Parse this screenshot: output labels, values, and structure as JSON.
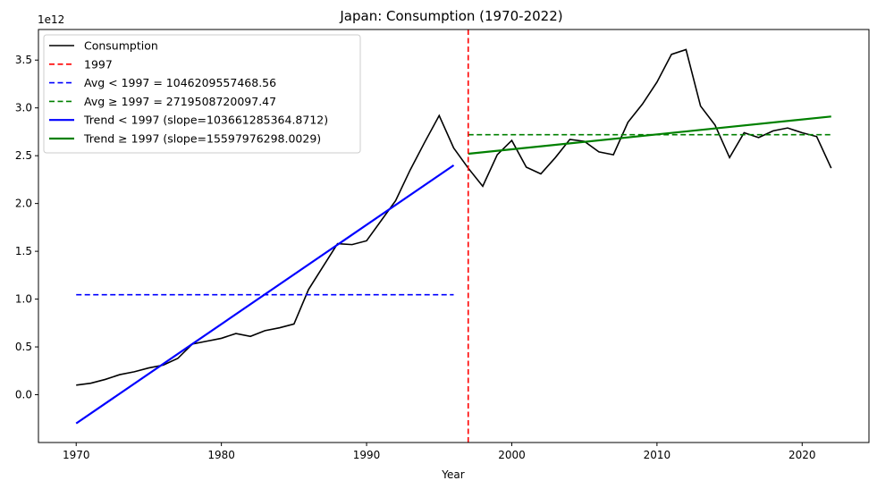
{
  "chart_data": {
    "type": "line",
    "title": "Japan: Consumption (1970-2022)",
    "xlabel": "Year",
    "ylabel": "",
    "y_scale_label": "1e12",
    "xlim": [
      1967.4,
      2024.6
    ],
    "ylim": [
      -0.5,
      3.82
    ],
    "x_ticks": [
      1970,
      1980,
      1990,
      2000,
      2010,
      2020
    ],
    "x_tick_labels": [
      "1970",
      "1980",
      "1990",
      "2000",
      "2010",
      "2020"
    ],
    "y_ticks": [
      0.0,
      0.5,
      1.0,
      1.5,
      2.0,
      2.5,
      3.0,
      3.5
    ],
    "y_tick_labels": [
      "0.0",
      "0.5",
      "1.0",
      "1.5",
      "2.0",
      "2.5",
      "3.0",
      "3.5"
    ],
    "grid": false,
    "legend_position": "top-left",
    "series": [
      {
        "name": "Consumption",
        "color": "#000000",
        "style": "solid",
        "x": [
          1970,
          1971,
          1972,
          1973,
          1974,
          1975,
          1976,
          1977,
          1978,
          1979,
          1980,
          1981,
          1982,
          1983,
          1984,
          1985,
          1986,
          1987,
          1988,
          1989,
          1990,
          1991,
          1992,
          1993,
          1994,
          1995,
          1996,
          1997,
          1998,
          1999,
          2000,
          2001,
          2002,
          2003,
          2004,
          2005,
          2006,
          2007,
          2008,
          2009,
          2010,
          2011,
          2012,
          2013,
          2014,
          2015,
          2016,
          2017,
          2018,
          2019,
          2020,
          2021,
          2022
        ],
        "values": [
          0.1,
          0.12,
          0.16,
          0.21,
          0.24,
          0.28,
          0.31,
          0.38,
          0.53,
          0.56,
          0.59,
          0.64,
          0.61,
          0.67,
          0.7,
          0.74,
          1.1,
          1.34,
          1.58,
          1.57,
          1.61,
          1.82,
          2.03,
          2.35,
          2.64,
          2.92,
          2.58,
          2.37,
          2.18,
          2.51,
          2.66,
          2.38,
          2.31,
          2.48,
          2.67,
          2.65,
          2.54,
          2.51,
          2.85,
          3.04,
          3.27,
          3.56,
          3.61,
          3.02,
          2.82,
          2.48,
          2.74,
          2.69,
          2.76,
          2.79,
          2.74,
          2.7,
          2.37
        ]
      },
      {
        "name": "Trend < 1997 (slope=103661285364.8712)",
        "color": "#0000ff",
        "style": "solid",
        "x": [
          1970,
          1996
        ],
        "values": [
          -0.3,
          2.4
        ]
      },
      {
        "name": "Trend ≥ 1997 (slope=15597976298.0029)",
        "color": "#008000",
        "style": "solid",
        "x": [
          1997,
          2022
        ],
        "values": [
          2.52,
          2.91
        ]
      },
      {
        "name": "Avg < 1997 = 1046209557468.56",
        "color": "#0000ff",
        "style": "dashed",
        "x": [
          1970,
          1996
        ],
        "values": [
          1.046,
          1.046
        ]
      },
      {
        "name": "Avg ≥ 1997 = 2719508720097.47",
        "color": "#008000",
        "style": "dashed",
        "x": [
          1997,
          2022
        ],
        "values": [
          2.7195,
          2.7195
        ]
      }
    ],
    "vlines": [
      {
        "name": "1997",
        "x": 1997,
        "color": "#ff0000",
        "style": "dashed"
      }
    ],
    "legend": [
      {
        "label": "Consumption",
        "color": "#000000",
        "style": "solid"
      },
      {
        "label": "1997",
        "color": "#ff0000",
        "style": "dashed"
      },
      {
        "label": "Avg < 1997 = 1046209557468.56",
        "color": "#0000ff",
        "style": "dashed"
      },
      {
        "label": "Avg ≥ 1997 = 2719508720097.47",
        "color": "#008000",
        "style": "dashed"
      },
      {
        "label": "Trend < 1997 (slope=103661285364.8712)",
        "color": "#0000ff",
        "style": "solid-thick"
      },
      {
        "label": "Trend ≥ 1997 (slope=15597976298.0029)",
        "color": "#008000",
        "style": "solid-thick"
      }
    ]
  }
}
